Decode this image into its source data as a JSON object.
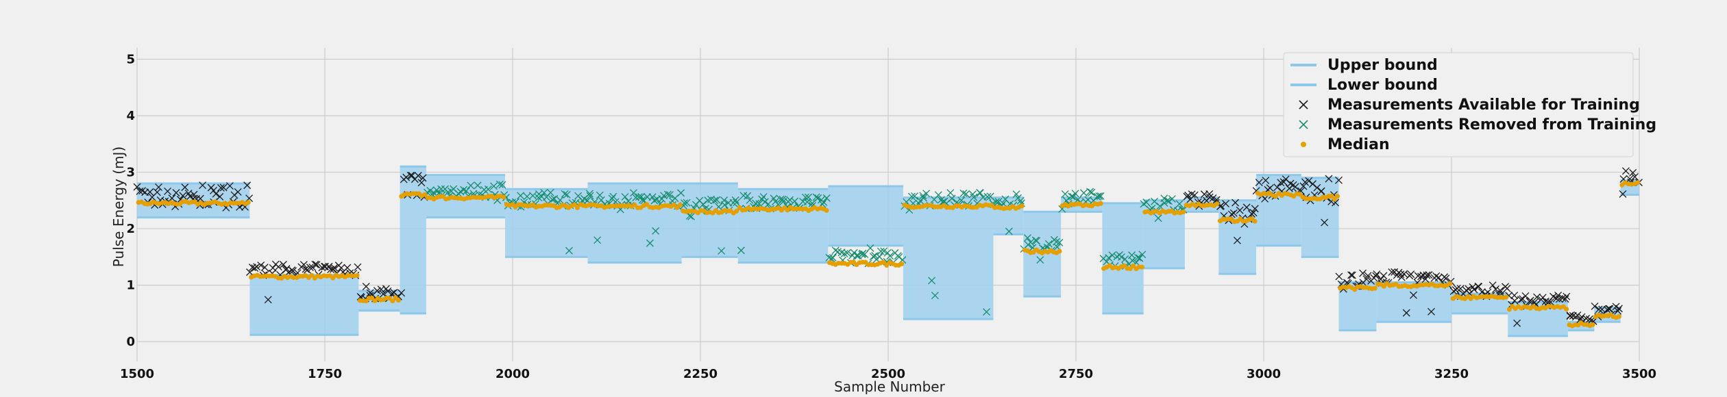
{
  "chart_data": {
    "type": "line",
    "title": "",
    "xlabel": "Sample Number",
    "ylabel": "Pulse Energy (mJ)",
    "xlim": [
      1500,
      3500
    ],
    "ylim": [
      -0.35,
      5.2
    ],
    "xticks": [
      1500,
      1750,
      2000,
      2250,
      2500,
      2750,
      3000,
      3250,
      3500
    ],
    "yticks": [
      0,
      1,
      2,
      3,
      4,
      5
    ],
    "grid": true,
    "legend_position": "top-right",
    "legend": [
      {
        "label": "Upper bound",
        "marker": "line",
        "color": "#8dc8ea"
      },
      {
        "label": "Lower bound",
        "marker": "line",
        "color": "#8dc8ea"
      },
      {
        "label": "Measurements Available for Training",
        "marker": "x",
        "color": "#1a1a1a"
      },
      {
        "label": "Measurements Removed from Training",
        "marker": "x",
        "color": "#168c6c"
      },
      {
        "label": "Median",
        "marker": "dot",
        "color": "#e69f00"
      }
    ],
    "colors": {
      "band_fill": "#a3d2ee",
      "band_line": "#8dc8ea",
      "available": "#1a1a1a",
      "removed": "#168c6c",
      "median": "#e69f00",
      "background": "#f0f0f0",
      "grid": "#cbcbcb"
    },
    "segments": [
      {
        "x": [
          1500,
          1650
        ],
        "median": 2.45,
        "upper": 2.8,
        "lower": 2.2,
        "status": "available",
        "spread": 0.2
      },
      {
        "x": [
          1650,
          1795
        ],
        "median": 1.15,
        "upper": 1.18,
        "lower": 0.12,
        "status": "available",
        "spread": 0.1
      },
      {
        "x": [
          1795,
          1850
        ],
        "median": 0.75,
        "upper": 0.9,
        "lower": 0.55,
        "status": "available",
        "spread": 0.12
      },
      {
        "x": [
          1850,
          1885
        ],
        "median": 2.6,
        "upper": 3.1,
        "lower": 0.5,
        "status": "available",
        "spread": 0.3
      },
      {
        "x": [
          1885,
          1990
        ],
        "median": 2.55,
        "upper": 2.95,
        "lower": 2.2,
        "status": "removed",
        "spread": 0.12
      },
      {
        "x": [
          1990,
          2100
        ],
        "median": 2.4,
        "upper": 2.7,
        "lower": 1.5,
        "status": "removed",
        "spread": 0.12
      },
      {
        "x": [
          2100,
          2225
        ],
        "median": 2.4,
        "upper": 2.8,
        "lower": 1.4,
        "status": "removed",
        "spread": 0.12
      },
      {
        "x": [
          2225,
          2300
        ],
        "median": 2.3,
        "upper": 2.8,
        "lower": 1.5,
        "status": "removed",
        "spread": 0.12
      },
      {
        "x": [
          2300,
          2420
        ],
        "median": 2.35,
        "upper": 2.7,
        "lower": 1.4,
        "status": "removed",
        "spread": 0.12
      },
      {
        "x": [
          2420,
          2520
        ],
        "median": 1.38,
        "upper": 2.75,
        "lower": 1.7,
        "status": "removed",
        "spread": 0.12
      },
      {
        "x": [
          2520,
          2640
        ],
        "median": 2.4,
        "upper": 2.55,
        "lower": 0.4,
        "status": "removed",
        "spread": 0.12
      },
      {
        "x": [
          2640,
          2680
        ],
        "median": 2.38,
        "upper": 2.55,
        "lower": 1.9,
        "status": "removed",
        "spread": 0.12
      },
      {
        "x": [
          2680,
          2730
        ],
        "median": 1.6,
        "upper": 2.3,
        "lower": 0.8,
        "status": "removed",
        "spread": 0.12
      },
      {
        "x": [
          2730,
          2785
        ],
        "median": 2.42,
        "upper": 2.55,
        "lower": 2.3,
        "status": "removed",
        "spread": 0.12
      },
      {
        "x": [
          2785,
          2840
        ],
        "median": 1.32,
        "upper": 2.45,
        "lower": 0.5,
        "status": "removed",
        "spread": 0.12
      },
      {
        "x": [
          2840,
          2895
        ],
        "median": 2.3,
        "upper": 2.5,
        "lower": 1.3,
        "status": "removed",
        "spread": 0.12
      },
      {
        "x": [
          2895,
          2940
        ],
        "median": 2.42,
        "upper": 2.55,
        "lower": 2.3,
        "status": "available",
        "spread": 0.08
      },
      {
        "x": [
          2940,
          2990
        ],
        "median": 2.15,
        "upper": 2.5,
        "lower": 1.2,
        "status": "available",
        "spread": 0.2
      },
      {
        "x": [
          2990,
          3050
        ],
        "median": 2.6,
        "upper": 2.95,
        "lower": 1.7,
        "status": "available",
        "spread": 0.2
      },
      {
        "x": [
          3050,
          3100
        ],
        "median": 2.55,
        "upper": 2.9,
        "lower": 1.5,
        "status": "available",
        "spread": 0.25
      },
      {
        "x": [
          3100,
          3150
        ],
        "median": 0.95,
        "upper": 1.05,
        "lower": 0.2,
        "status": "available",
        "spread": 0.15
      },
      {
        "x": [
          3150,
          3250
        ],
        "median": 1.0,
        "upper": 1.05,
        "lower": 0.35,
        "status": "available",
        "spread": 0.12
      },
      {
        "x": [
          3250,
          3325
        ],
        "median": 0.78,
        "upper": 0.85,
        "lower": 0.5,
        "status": "available",
        "spread": 0.1
      },
      {
        "x": [
          3325,
          3405
        ],
        "median": 0.6,
        "upper": 0.7,
        "lower": 0.1,
        "status": "available",
        "spread": 0.1
      },
      {
        "x": [
          3405,
          3440
        ],
        "median": 0.3,
        "upper": 0.35,
        "lower": 0.2,
        "status": "available",
        "spread": 0.06
      },
      {
        "x": [
          3440,
          3475
        ],
        "median": 0.45,
        "upper": 0.6,
        "lower": 0.35,
        "status": "available",
        "spread": 0.1
      },
      {
        "x": [
          3475,
          3500
        ],
        "median": 2.8,
        "upper": 2.85,
        "lower": 2.6,
        "status": "available",
        "spread": 0.15
      }
    ]
  }
}
